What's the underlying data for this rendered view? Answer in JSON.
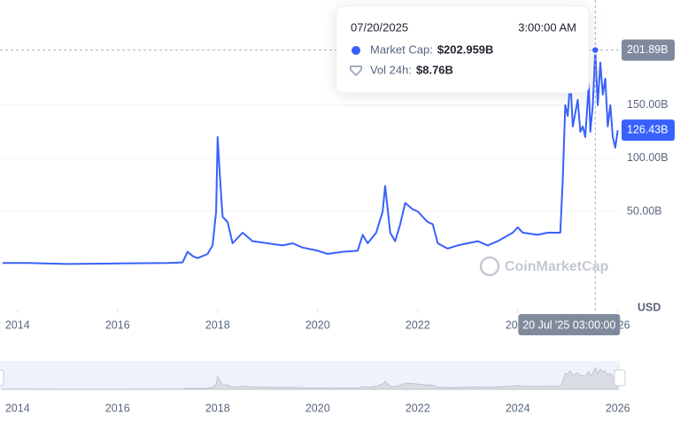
{
  "chart_data": {
    "type": "line",
    "x": [
      2013.7,
      2014.2,
      2015.0,
      2016.0,
      2017.0,
      2017.3,
      2017.4,
      2017.5,
      2017.6,
      2017.8,
      2017.9,
      2017.97,
      2018.0,
      2018.05,
      2018.1,
      2018.2,
      2018.3,
      2018.5,
      2018.7,
      2019.0,
      2019.3,
      2019.5,
      2019.7,
      2020.0,
      2020.2,
      2020.5,
      2020.8,
      2020.9,
      2021.0,
      2021.17,
      2021.3,
      2021.35,
      2021.45,
      2021.55,
      2021.65,
      2021.75,
      2021.9,
      2022.0,
      2022.1,
      2022.2,
      2022.3,
      2022.4,
      2022.6,
      2022.8,
      2023.0,
      2023.2,
      2023.4,
      2023.6,
      2023.9,
      2024.0,
      2024.1,
      2024.4,
      2024.6,
      2024.85,
      2024.9,
      2024.95,
      2025.0,
      2025.05,
      2025.1,
      2025.2,
      2025.25,
      2025.3,
      2025.35,
      2025.42,
      2025.45,
      2025.5,
      2025.55,
      2025.6,
      2025.65,
      2025.7,
      2025.75,
      2025.8,
      2025.85,
      2025.9,
      2025.95,
      2026.0
    ],
    "values": [
      1.5,
      1.5,
      0.5,
      1,
      1.5,
      2,
      12,
      8,
      6,
      10,
      18,
      50,
      120,
      80,
      45,
      40,
      20,
      30,
      22,
      20,
      18,
      20,
      16,
      13,
      10,
      12,
      13,
      28,
      20,
      30,
      50,
      74,
      30,
      22,
      38,
      58,
      52,
      50,
      45,
      40,
      38,
      20,
      15,
      18,
      20,
      22,
      18,
      22,
      30,
      35,
      30,
      28,
      30,
      30,
      80,
      150,
      140,
      175,
      130,
      155,
      125,
      130,
      120,
      170,
      125,
      150,
      202,
      150,
      190,
      160,
      175,
      130,
      150,
      120,
      110,
      126.43
    ],
    "color": "#3861fb",
    "xlim": [
      2013.65,
      2026.04
    ],
    "xticks": [
      2014,
      2016,
      2018,
      2020,
      2022,
      2024,
      2026
    ],
    "ylim": [
      0,
      249
    ],
    "yticks": [
      {
        "value": 50,
        "label": "50.00B"
      },
      {
        "value": 100,
        "label": "100.00B"
      },
      {
        "value": 150,
        "label": "150.00B"
      }
    ],
    "grid": true,
    "markers": [
      {
        "value": 201.89,
        "label": "201.89B"
      },
      {
        "value": 126.43,
        "label": "126.43B"
      }
    ],
    "unit": "USD",
    "watermark": "CoinMarketCap",
    "crosshair": {
      "x": 2025.55,
      "label": "20 Jul '25 03:00:00"
    },
    "tooltip": {
      "date": "07/20/2025",
      "time": "3:00:00 AM",
      "items": [
        {
          "label": "Market Cap:",
          "value": "$202.959B"
        },
        {
          "label": "Vol 24h:",
          "value": "$8.76B"
        }
      ]
    }
  }
}
